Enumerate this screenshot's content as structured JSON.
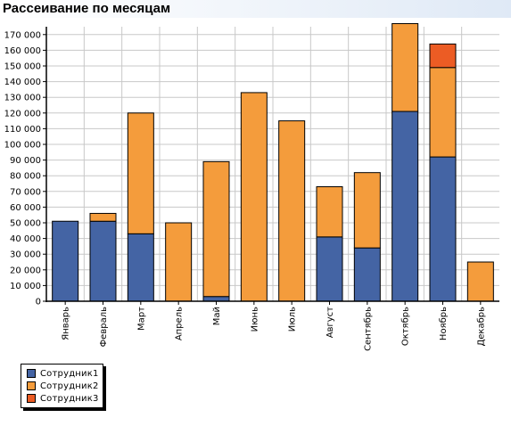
{
  "title": "Рассеивание по месяцам",
  "colors": {
    "series1": "#4464a4",
    "series2": "#f49c3c",
    "series3": "#ec5c24",
    "grid": "#c8c8c8"
  },
  "chart_data": {
    "type": "bar",
    "stacked": true,
    "title": "Рассеивание по месяцам",
    "categories": [
      "Январь",
      "Февраль",
      "Март",
      "Апрель",
      "Май",
      "Июнь",
      "Июль",
      "Август",
      "Сентябрь",
      "Октябрь",
      "Ноябрь",
      "Декабрь"
    ],
    "series": [
      {
        "name": "Сотрудник1",
        "values": [
          51000,
          51000,
          43000,
          0,
          3000,
          0,
          0,
          41000,
          34000,
          121000,
          92000,
          0
        ]
      },
      {
        "name": "Сотрудник2",
        "values": [
          0,
          5000,
          77000,
          50000,
          86000,
          133000,
          115000,
          32000,
          48000,
          56000,
          57000,
          25000
        ]
      },
      {
        "name": "Сотрудник3",
        "values": [
          0,
          0,
          0,
          0,
          0,
          0,
          0,
          0,
          0,
          0,
          15000,
          0
        ]
      }
    ],
    "ylim": [
      0,
      175000
    ],
    "yticks": [
      "0",
      "10 000",
      "20 000",
      "30 000",
      "40 000",
      "50 000",
      "60 000",
      "70 000",
      "80 000",
      "90 000",
      "100 000",
      "110 000",
      "120 000",
      "130 000",
      "140 000",
      "150 000",
      "160 000",
      "170 000"
    ],
    "grid": true,
    "legend_position": "bottom-left"
  }
}
